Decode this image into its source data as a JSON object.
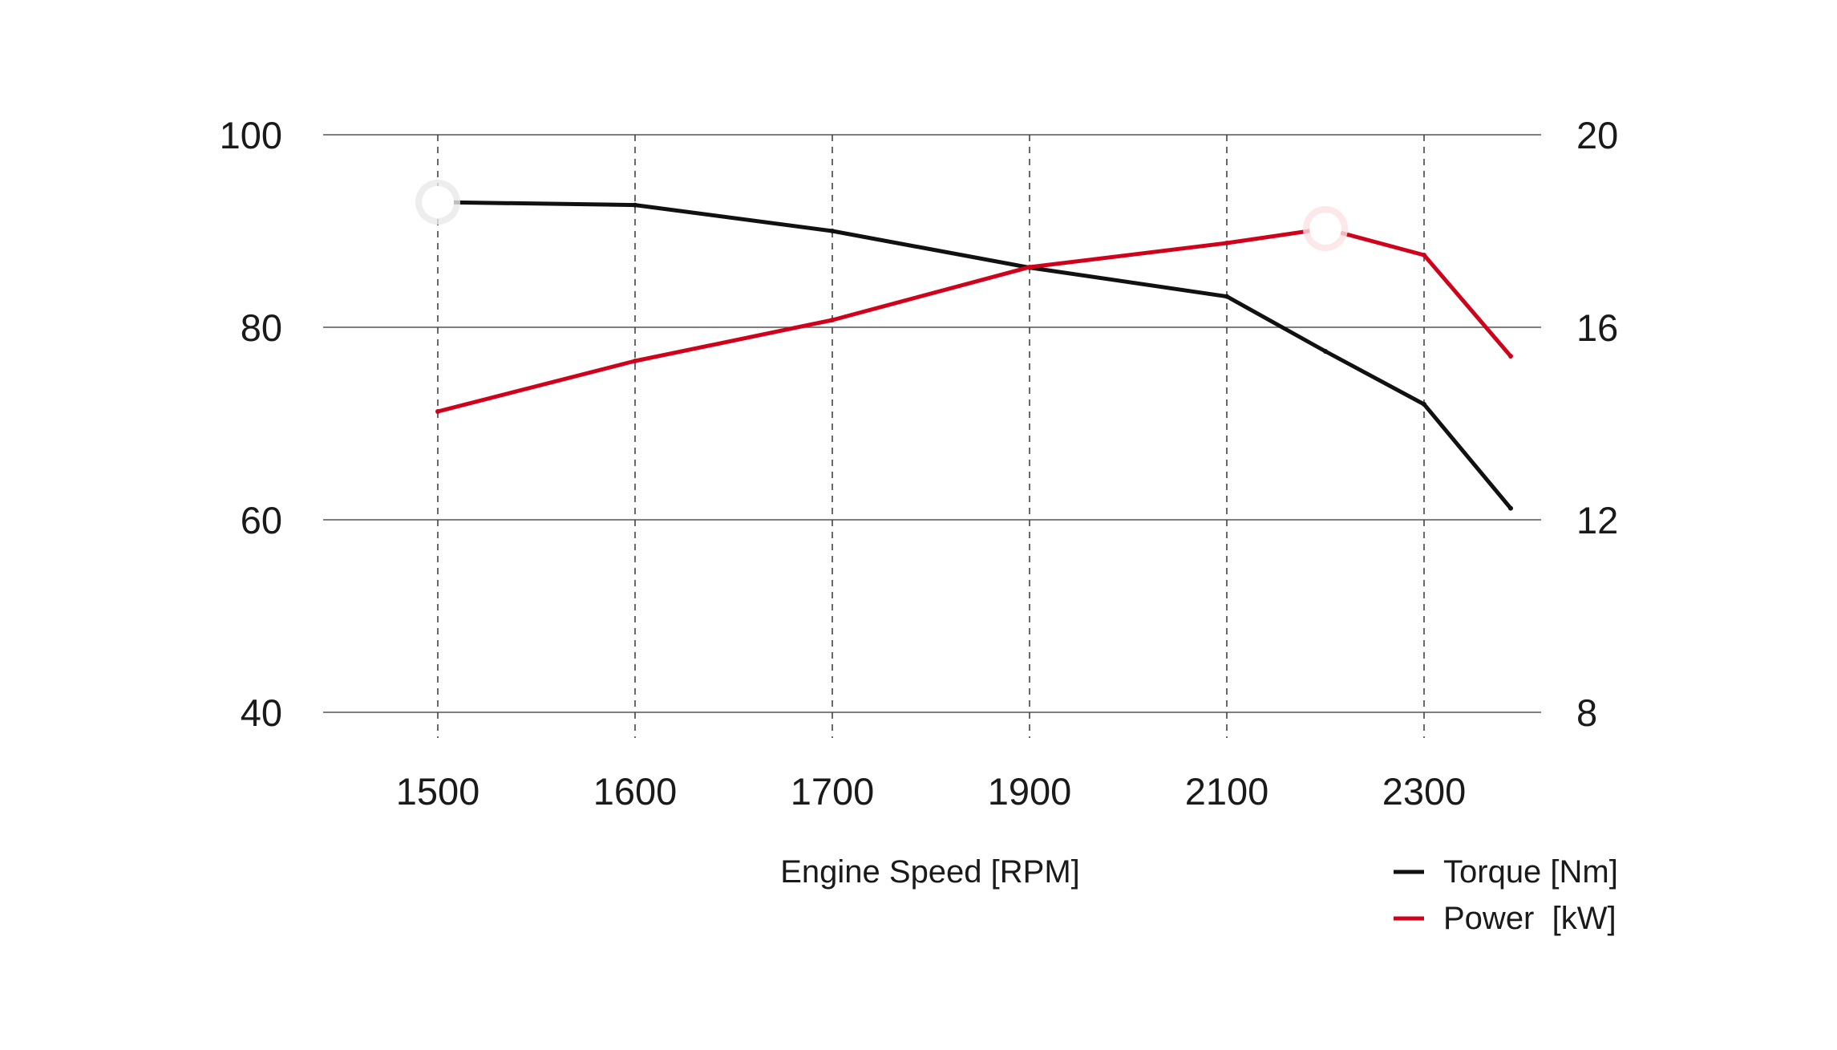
{
  "chart_data": {
    "type": "line",
    "x": [
      1500,
      1600,
      1700,
      1900,
      2100,
      2200,
      2300,
      2400
    ],
    "x_tick_labels": [
      "1500",
      "1600",
      "1700",
      "1900",
      "2100",
      "2300"
    ],
    "xlabel": "Engine Speed [RPM]",
    "y_left": {
      "ticks": [
        "40",
        "60",
        "80",
        "100"
      ],
      "range": [
        40,
        100
      ]
    },
    "y_right": {
      "ticks": [
        "8",
        "12",
        "16",
        "20"
      ],
      "range": [
        8,
        20
      ]
    },
    "series": [
      {
        "name": "Torque [Nm]",
        "axis": "left",
        "color": "#111111",
        "values": [
          93,
          92.7,
          90,
          86.2,
          83.2,
          77.5,
          72,
          61.2
        ],
        "highlight_index": 0
      },
      {
        "name": "Power  [kW]",
        "axis": "right",
        "color": "#d0021b",
        "values": [
          14.25,
          15.3,
          16.15,
          17.25,
          17.75,
          18.05,
          17.5,
          15.4
        ],
        "highlight_index": 5
      }
    ],
    "grid": {
      "horizontal": "solid",
      "vertical": "dashed"
    },
    "legend_position": "bottom-right"
  }
}
